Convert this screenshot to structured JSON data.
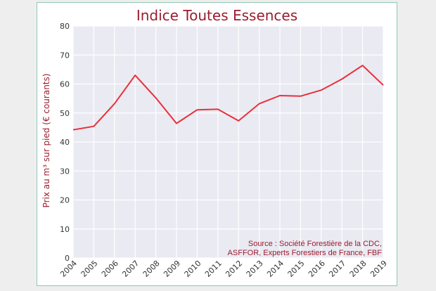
{
  "chart_data": {
    "type": "line",
    "title": "Indice Toutes Essences",
    "ylabel": "Prix au m³ sur pied (€ courants)",
    "xlabel": "",
    "x": [
      "2004",
      "2005",
      "2006",
      "2007",
      "2008",
      "2009",
      "2010",
      "2011",
      "2012",
      "2013",
      "2014",
      "2015",
      "2016",
      "2017",
      "2018",
      "2019"
    ],
    "y_ticks": [
      "0",
      "10",
      "20",
      "30",
      "40",
      "50",
      "60",
      "70",
      "80"
    ],
    "ylim": [
      0,
      80
    ],
    "series": [
      {
        "values": [
          44.2,
          45.4,
          53.2,
          63.0,
          55.2,
          46.4,
          51.1,
          51.3,
          47.3,
          53.2,
          56.0,
          55.8,
          57.9,
          61.7,
          66.4,
          59.6
        ]
      }
    ],
    "line_color": "#e8303a",
    "plot_background": "#eaeaf2",
    "grid": true,
    "source_line1": "Source : Société Forestière de la CDC,",
    "source_line2": "ASFFOR, Experts Forestiers de France, FBF"
  }
}
